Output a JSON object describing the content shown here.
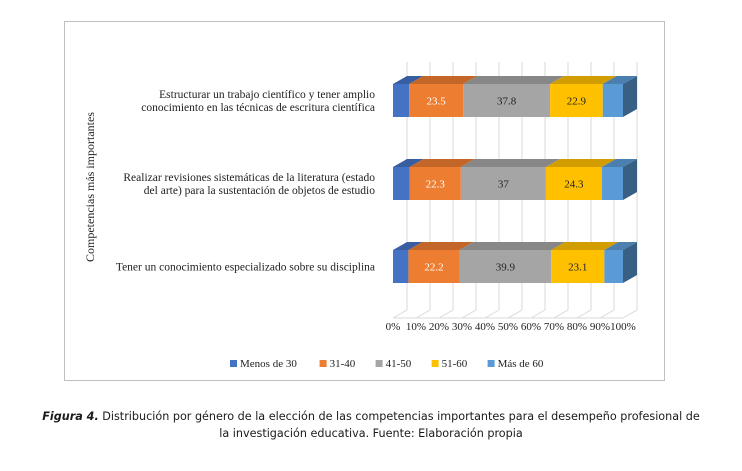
{
  "chart_data": {
    "type": "bar",
    "orientation": "horizontal",
    "stacked": "100%",
    "ylabel": "Competencias más importantes",
    "categories": [
      [
        "Estructurar un trabajo científico y tener amplio",
        "conocimiento en las técnicas de escritura científica"
      ],
      [
        "Realizar revisiones sistemáticas de la literatura (estado",
        "del arte) para la sustentación de objetos de estudio"
      ],
      [
        "Tener un conocimiento especializado sobre su disciplina"
      ]
    ],
    "xticks": [
      "0%",
      "10%",
      "20%",
      "30%",
      "40%",
      "50%",
      "60%",
      "70%",
      "80%",
      "90%",
      "100%"
    ],
    "xlim": [
      0,
      100
    ],
    "series": [
      {
        "name": "Menos de 30",
        "color": "#4472c4",
        "values": [
          7.0,
          7.2,
          6.7
        ],
        "show_label": false
      },
      {
        "name": "31-40",
        "color": "#ed7d31",
        "values": [
          23.5,
          22.3,
          22.2
        ],
        "show_label": true
      },
      {
        "name": "41-50",
        "color": "#a5a5a5",
        "values": [
          37.8,
          37,
          39.9
        ],
        "show_label": true
      },
      {
        "name": "51-60",
        "color": "#ffc000",
        "values": [
          22.9,
          24.3,
          23.1
        ],
        "show_label": true
      },
      {
        "name": "Más de 60",
        "color": "#5b9bd5",
        "values": [
          8.8,
          9.2,
          8.1
        ],
        "show_label": false
      }
    ],
    "legend": "bottom"
  },
  "caption": {
    "figure_label": "Figura 4.",
    "text": " Distribución por género de la elección de las competencias importantes para el desempeño profesional de la investigación educativa. Fuente: Elaboración propia"
  }
}
